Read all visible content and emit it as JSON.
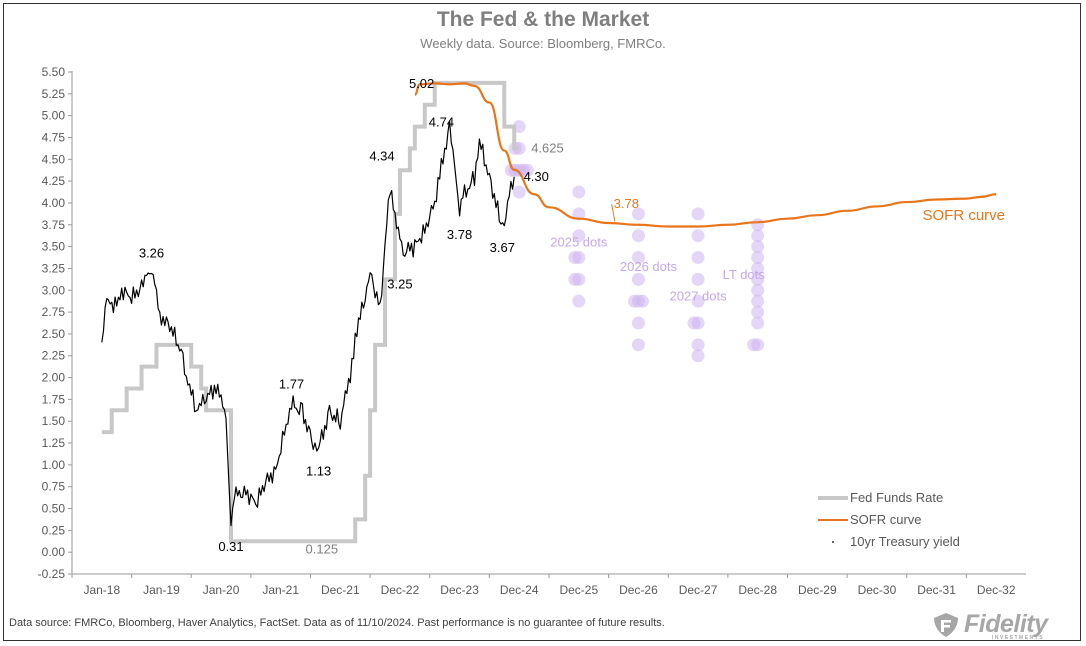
{
  "chart_data": {
    "type": "line",
    "title": "The Fed & the Market",
    "subtitle": "Weekly data.  Source: Bloomberg, FMRCo.",
    "ylim": [
      -0.25,
      5.5
    ],
    "ytick_labels": [
      "-0.25",
      "0.00",
      "0.25",
      "0.50",
      "0.75",
      "1.00",
      "1.25",
      "1.50",
      "1.75",
      "2.00",
      "2.25",
      "2.50",
      "2.75",
      "3.00",
      "3.25",
      "3.50",
      "3.75",
      "4.00",
      "4.25",
      "4.50",
      "4.75",
      "5.00",
      "5.25",
      "5.50"
    ],
    "xticks": [
      {
        "label": "Jan-18",
        "x": "2018-01"
      },
      {
        "label": "Jan-19",
        "x": "2019-01"
      },
      {
        "label": "Jan-20",
        "x": "2020-01"
      },
      {
        "label": "Jan-21",
        "x": "2021-01"
      },
      {
        "label": "Dec-21",
        "x": "2021-12"
      },
      {
        "label": "Dec-22",
        "x": "2022-12"
      },
      {
        "label": "Dec-23",
        "x": "2023-12"
      },
      {
        "label": "Dec-24",
        "x": "2024-12"
      },
      {
        "label": "Dec-25",
        "x": "2025-12"
      },
      {
        "label": "Dec-26",
        "x": "2026-12"
      },
      {
        "label": "Dec-27",
        "x": "2027-12"
      },
      {
        "label": "Dec-28",
        "x": "2028-12"
      },
      {
        "label": "Dec-29",
        "x": "2029-12"
      },
      {
        "label": "Dec-30",
        "x": "2030-12"
      },
      {
        "label": "Dec-31",
        "x": "2031-12"
      },
      {
        "label": "Dec-32",
        "x": "2032-12"
      }
    ],
    "grid": false,
    "legend": {
      "placement": "bottom-right",
      "entries": [
        {
          "name": "Fed Funds Rate",
          "color": "#c8c8c8"
        },
        {
          "name": "SOFR curve",
          "color": "#e8751a"
        },
        {
          "name": "10yr Treasury yield",
          "color": "#000000"
        }
      ]
    },
    "series": [
      {
        "name": "Fed Funds Rate",
        "color": "#c8c8c8",
        "step": true,
        "points": [
          [
            "2018-01",
            1.375
          ],
          [
            "2018-03",
            1.625
          ],
          [
            "2018-06",
            1.875
          ],
          [
            "2018-09",
            2.125
          ],
          [
            "2018-12",
            2.375
          ],
          [
            "2019-07",
            2.125
          ],
          [
            "2019-09",
            1.875
          ],
          [
            "2019-10",
            1.625
          ],
          [
            "2020-03",
            0.125
          ],
          [
            "2022-03",
            0.375
          ],
          [
            "2022-05",
            0.875
          ],
          [
            "2022-06",
            1.625
          ],
          [
            "2022-07",
            2.375
          ],
          [
            "2022-09",
            3.125
          ],
          [
            "2022-11",
            3.875
          ],
          [
            "2022-12",
            4.375
          ],
          [
            "2023-02",
            4.625
          ],
          [
            "2023-03",
            4.875
          ],
          [
            "2023-05",
            5.125
          ],
          [
            "2023-07",
            5.375
          ],
          [
            "2024-09",
            4.875
          ],
          [
            "2024-11",
            4.625
          ]
        ]
      },
      {
        "name": "SOFR curve",
        "color": "#e8751a",
        "points": [
          [
            "2023-03",
            5.24
          ],
          [
            "2023-04",
            5.36
          ],
          [
            "2023-07",
            5.37
          ],
          [
            "2023-10",
            5.36
          ],
          [
            "2024-01",
            5.37
          ],
          [
            "2024-03",
            5.34
          ],
          [
            "2024-06",
            5.15
          ],
          [
            "2024-09",
            4.6
          ],
          [
            "2024-11",
            4.38
          ],
          [
            "2025-03",
            4.1
          ],
          [
            "2025-06",
            3.95
          ],
          [
            "2025-12",
            3.82
          ],
          [
            "2026-06",
            3.77
          ],
          [
            "2026-12",
            3.75
          ],
          [
            "2027-06",
            3.73
          ],
          [
            "2027-12",
            3.73
          ],
          [
            "2028-06",
            3.75
          ],
          [
            "2028-12",
            3.78
          ],
          [
            "2029-06",
            3.82
          ],
          [
            "2029-12",
            3.86
          ],
          [
            "2030-06",
            3.91
          ],
          [
            "2030-12",
            3.96
          ],
          [
            "2031-06",
            4.01
          ],
          [
            "2031-12",
            4.04
          ],
          [
            "2032-06",
            4.05
          ],
          [
            "2032-09",
            4.07
          ],
          [
            "2032-12",
            4.1
          ]
        ]
      },
      {
        "name": "10yr Treasury yield",
        "color": "#000000",
        "points": [
          [
            "2018-01",
            2.45
          ],
          [
            "2018-02",
            2.85
          ],
          [
            "2018-04",
            2.85
          ],
          [
            "2018-05",
            3.0
          ],
          [
            "2018-07",
            2.9
          ],
          [
            "2018-09",
            3.05
          ],
          [
            "2018-10",
            3.2
          ],
          [
            "2018-11",
            3.24
          ],
          [
            "2018-12",
            2.9
          ],
          [
            "2019-01",
            2.7
          ],
          [
            "2019-03",
            2.55
          ],
          [
            "2019-05",
            2.3
          ],
          [
            "2019-06",
            2.05
          ],
          [
            "2019-08",
            1.6
          ],
          [
            "2019-09",
            1.7
          ],
          [
            "2019-11",
            1.85
          ],
          [
            "2019-12",
            1.9
          ],
          [
            "2020-01",
            1.75
          ],
          [
            "2020-02",
            1.5
          ],
          [
            "2020-03",
            0.4
          ],
          [
            "2020-04",
            0.65
          ],
          [
            "2020-06",
            0.7
          ],
          [
            "2020-08",
            0.55
          ],
          [
            "2020-10",
            0.8
          ],
          [
            "2020-12",
            0.95
          ],
          [
            "2021-02",
            1.45
          ],
          [
            "2021-03",
            1.7
          ],
          [
            "2021-05",
            1.6
          ],
          [
            "2021-07",
            1.25
          ],
          [
            "2021-08",
            1.2
          ],
          [
            "2021-10",
            1.6
          ],
          [
            "2021-12",
            1.5
          ],
          [
            "2022-01",
            1.8
          ],
          [
            "2022-02",
            1.95
          ],
          [
            "2022-03",
            2.5
          ],
          [
            "2022-05",
            2.9
          ],
          [
            "2022-06",
            3.2
          ],
          [
            "2022-08",
            2.8
          ],
          [
            "2022-10",
            4.2
          ],
          [
            "2022-11",
            3.8
          ],
          [
            "2022-12",
            3.6
          ],
          [
            "2023-01",
            3.45
          ],
          [
            "2023-03",
            3.5
          ],
          [
            "2023-05",
            3.7
          ],
          [
            "2023-07",
            4.0
          ],
          [
            "2023-08",
            4.3
          ],
          [
            "2023-10",
            4.9
          ],
          [
            "2023-11",
            4.45
          ],
          [
            "2023-12",
            3.9
          ],
          [
            "2024-01",
            4.1
          ],
          [
            "2024-03",
            4.3
          ],
          [
            "2024-04",
            4.7
          ],
          [
            "2024-06",
            4.3
          ],
          [
            "2024-08",
            3.85
          ],
          [
            "2024-09",
            3.7
          ],
          [
            "2024-10",
            4.1
          ],
          [
            "2024-11",
            4.3
          ]
        ]
      }
    ],
    "dot_groups": [
      {
        "label": "2025 dots",
        "x": "2025-12",
        "values": [
          4.125,
          3.875,
          3.625,
          3.375,
          3.375,
          3.125,
          3.125,
          2.875
        ]
      },
      {
        "label": "2026 dots",
        "x": "2026-12",
        "values": [
          3.875,
          3.625,
          3.375,
          3.125,
          2.875,
          2.875,
          2.875,
          2.625,
          2.375
        ]
      },
      {
        "label": "2027 dots",
        "x": "2027-12",
        "values": [
          3.875,
          3.625,
          3.375,
          3.125,
          2.875,
          2.625,
          2.625,
          2.375,
          2.25
        ]
      },
      {
        "label": "LT dots",
        "x": "2028-12",
        "values": [
          3.75,
          3.625,
          3.5,
          3.375,
          3.25,
          3.125,
          3.0,
          2.875,
          2.75,
          2.625,
          2.375,
          2.375
        ]
      },
      {
        "label": "",
        "x": "2024-12",
        "values": [
          4.875,
          4.625,
          4.625,
          4.375,
          4.375,
          4.375,
          4.375,
          4.375,
          4.125
        ]
      }
    ],
    "annotations": [
      {
        "text": "3.26",
        "x": "2018-11",
        "y": 3.26
      },
      {
        "text": "0.31",
        "x": "2020-03",
        "y": 0.31
      },
      {
        "text": "1.77",
        "x": "2021-03",
        "y": 1.77
      },
      {
        "text": "1.13",
        "x": "2021-08",
        "y": 1.13
      },
      {
        "text": "0.125",
        "x": "2021-06",
        "y": 0.125
      },
      {
        "text": "4.34",
        "x": "2022-10",
        "y": 4.34
      },
      {
        "text": "3.25",
        "x": "2022-12",
        "y": 3.25
      },
      {
        "text": "5.02",
        "x": "2023-10",
        "y": 5.02
      },
      {
        "text": "3.78",
        "x": "2023-12",
        "y": 3.78
      },
      {
        "text": "4.74",
        "x": "2024-04",
        "y": 4.74
      },
      {
        "text": "3.67",
        "x": "2024-09",
        "y": 3.67
      },
      {
        "text": "4.30",
        "x": "2024-11",
        "y": 4.3
      },
      {
        "text": "4.625",
        "x": "2024-12",
        "y": 4.625
      },
      {
        "text": "3.78",
        "x": "2026-05",
        "y": 3.78
      },
      {
        "text": "SOFR curve",
        "x": "2032-02",
        "y": 3.85
      }
    ]
  },
  "footer": {
    "note": "Data source: FMRCo, Bloomberg, Haver Analytics, FactSet. Data as of 11/10/2024. Past performance is no guarantee of future results."
  },
  "logo": {
    "name": "Fidelity",
    "tagline": "INVESTMENTS",
    "color": "#a6a6a6"
  }
}
